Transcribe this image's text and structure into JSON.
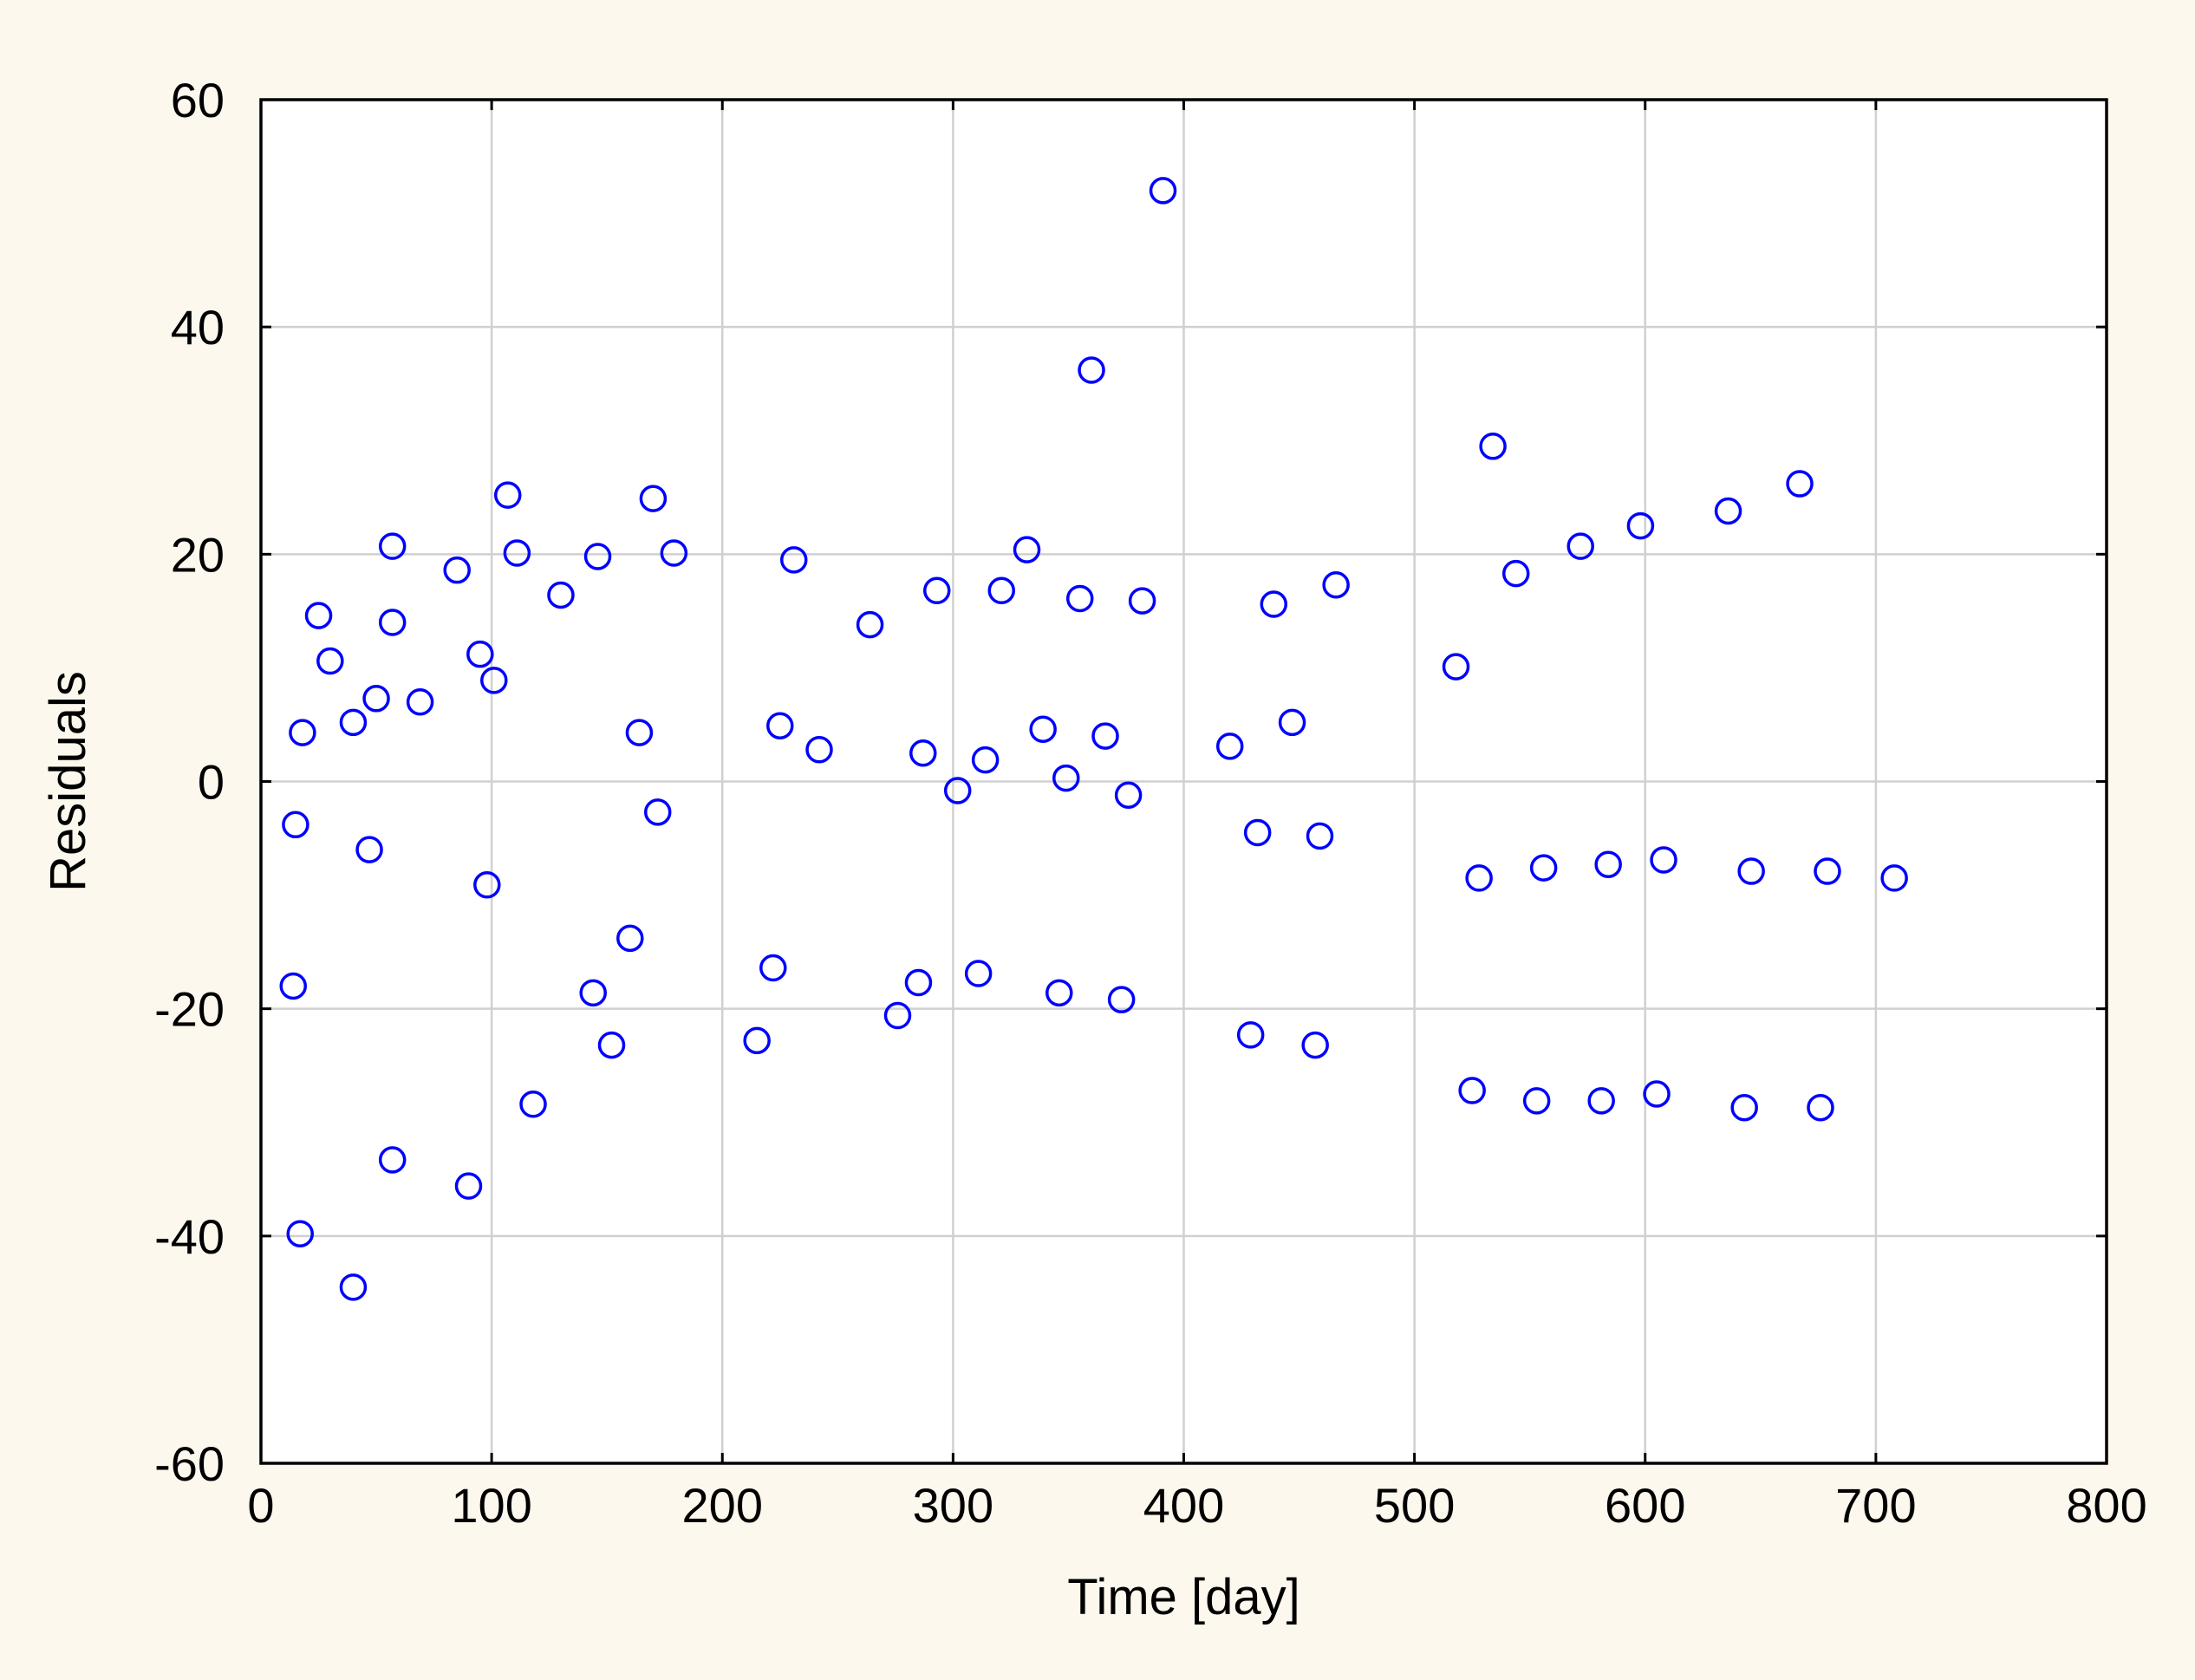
{
  "colors": {
    "outer_background": "#fdf8ee",
    "plot_background": "#ffffff",
    "grid": "#d0d0d0",
    "axis": "#000000",
    "marker": "#0000ff"
  },
  "chart_data": {
    "type": "scatter",
    "xlabel": "Time [day]",
    "ylabel": "Residuals",
    "xlim": [
      0,
      800
    ],
    "ylim": [
      -60,
      60
    ],
    "x_ticks": [
      0,
      100,
      200,
      300,
      400,
      500,
      600,
      700,
      800
    ],
    "y_ticks": [
      -60,
      -40,
      -20,
      0,
      20,
      40,
      60
    ],
    "grid": true,
    "marker": "open-circle",
    "points": [
      {
        "x": 14,
        "y": -18
      },
      {
        "x": 15,
        "y": -3.8
      },
      {
        "x": 17,
        "y": -39.8
      },
      {
        "x": 18,
        "y": 4.3
      },
      {
        "x": 25,
        "y": 14.6
      },
      {
        "x": 30,
        "y": 10.6
      },
      {
        "x": 40,
        "y": 5.2
      },
      {
        "x": 40,
        "y": -44.5
      },
      {
        "x": 47,
        "y": -6
      },
      {
        "x": 50,
        "y": 7.3
      },
      {
        "x": 57,
        "y": 20.7
      },
      {
        "x": 57,
        "y": 14
      },
      {
        "x": 57,
        "y": -33.3
      },
      {
        "x": 69,
        "y": 7
      },
      {
        "x": 85,
        "y": 18.6
      },
      {
        "x": 90,
        "y": -35.6
      },
      {
        "x": 95,
        "y": 11.2
      },
      {
        "x": 98,
        "y": -9.1
      },
      {
        "x": 101,
        "y": 8.9
      },
      {
        "x": 107,
        "y": 25.2
      },
      {
        "x": 111,
        "y": 20.1
      },
      {
        "x": 118,
        "y": -28.4
      },
      {
        "x": 130,
        "y": 16.4
      },
      {
        "x": 144,
        "y": -18.6
      },
      {
        "x": 146,
        "y": 19.8
      },
      {
        "x": 152,
        "y": -23.2
      },
      {
        "x": 160,
        "y": -13.8
      },
      {
        "x": 164,
        "y": 4.3
      },
      {
        "x": 170,
        "y": 24.9
      },
      {
        "x": 172,
        "y": -2.7
      },
      {
        "x": 179,
        "y": 20.1
      },
      {
        "x": 215,
        "y": -22.8
      },
      {
        "x": 222,
        "y": -16.4
      },
      {
        "x": 225,
        "y": 4.9
      },
      {
        "x": 231,
        "y": 19.5
      },
      {
        "x": 242,
        "y": 2.8
      },
      {
        "x": 264,
        "y": 13.8
      },
      {
        "x": 276,
        "y": -20.6
      },
      {
        "x": 285,
        "y": -17.7
      },
      {
        "x": 287,
        "y": 2.5
      },
      {
        "x": 293,
        "y": 16.8
      },
      {
        "x": 302,
        "y": -0.8
      },
      {
        "x": 311,
        "y": -16.9
      },
      {
        "x": 314,
        "y": 1.9
      },
      {
        "x": 321,
        "y": 16.8
      },
      {
        "x": 332,
        "y": 20.4
      },
      {
        "x": 339,
        "y": 4.6
      },
      {
        "x": 346,
        "y": -18.6
      },
      {
        "x": 349,
        "y": 0.3
      },
      {
        "x": 355,
        "y": 16.1
      },
      {
        "x": 360,
        "y": 36.2
      },
      {
        "x": 366,
        "y": 4
      },
      {
        "x": 373,
        "y": -19.2
      },
      {
        "x": 376,
        "y": -1.2
      },
      {
        "x": 382,
        "y": 15.9
      },
      {
        "x": 391,
        "y": 52
      },
      {
        "x": 420,
        "y": 3.1
      },
      {
        "x": 429,
        "y": -22.3
      },
      {
        "x": 432,
        "y": -4.5
      },
      {
        "x": 439,
        "y": 15.6
      },
      {
        "x": 447,
        "y": 5.2
      },
      {
        "x": 457,
        "y": -23.2
      },
      {
        "x": 459,
        "y": -4.8
      },
      {
        "x": 466,
        "y": 17.3
      },
      {
        "x": 518,
        "y": 10.1
      },
      {
        "x": 525,
        "y": -27.2
      },
      {
        "x": 528,
        "y": -8.5
      },
      {
        "x": 534,
        "y": 29.5
      },
      {
        "x": 544,
        "y": 18.3
      },
      {
        "x": 553,
        "y": -28.1
      },
      {
        "x": 556,
        "y": -7.6
      },
      {
        "x": 572,
        "y": 20.7
      },
      {
        "x": 581,
        "y": -28.1
      },
      {
        "x": 584,
        "y": -7.3
      },
      {
        "x": 598,
        "y": 22.5
      },
      {
        "x": 605,
        "y": -27.5
      },
      {
        "x": 608,
        "y": -6.9
      },
      {
        "x": 636,
        "y": 23.8
      },
      {
        "x": 643,
        "y": -28.7
      },
      {
        "x": 646,
        "y": -7.9
      },
      {
        "x": 667,
        "y": 26.2
      },
      {
        "x": 676,
        "y": -28.7
      },
      {
        "x": 679,
        "y": -7.9
      },
      {
        "x": 708,
        "y": -8.5
      }
    ]
  }
}
